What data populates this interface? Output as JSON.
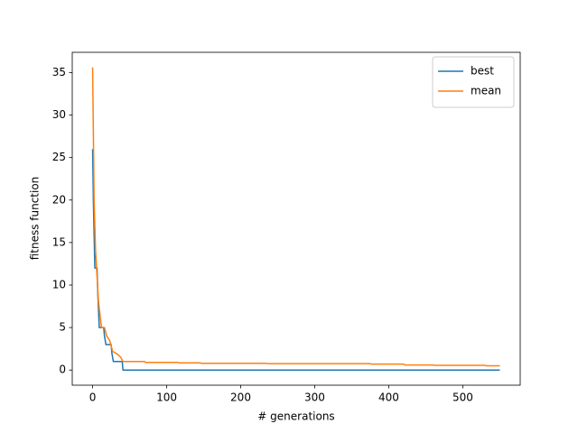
{
  "chart_data": {
    "type": "line",
    "xlabel": "# generations",
    "ylabel": "fitness function",
    "xlim": [
      -27.5,
      577.5
    ],
    "xticks": [
      0,
      100,
      200,
      300,
      400,
      500
    ],
    "ylim": [
      -1.78,
      37.38
    ],
    "yticks": [
      0,
      5,
      10,
      15,
      20,
      25,
      30,
      35
    ],
    "legend": "upper right",
    "series": [
      {
        "name": "best",
        "color": "#1f77b4",
        "x": [
          0,
          1,
          2,
          3,
          6,
          7,
          9,
          15,
          16,
          18,
          25,
          26,
          28,
          40,
          41,
          550
        ],
        "values": [
          26,
          20,
          16,
          12,
          12,
          9,
          5,
          5,
          4,
          3,
          3,
          2,
          1,
          1,
          0,
          0
        ]
      },
      {
        "name": "mean",
        "color": "#ff7f0e",
        "x": [
          0,
          1,
          2,
          4,
          6,
          8,
          12,
          16,
          19,
          23,
          27,
          33,
          38,
          41,
          70,
          72,
          115,
          117,
          145,
          147,
          235,
          237,
          375,
          377,
          420,
          422,
          460,
          462,
          530,
          532,
          550
        ],
        "values": [
          35.6,
          28,
          20,
          14,
          11,
          8,
          5,
          5,
          4,
          3.5,
          2.2,
          1.9,
          1.5,
          1,
          1,
          0.9,
          0.9,
          0.85,
          0.85,
          0.8,
          0.8,
          0.75,
          0.75,
          0.7,
          0.7,
          0.6,
          0.6,
          0.55,
          0.55,
          0.5,
          0.5
        ]
      }
    ]
  }
}
